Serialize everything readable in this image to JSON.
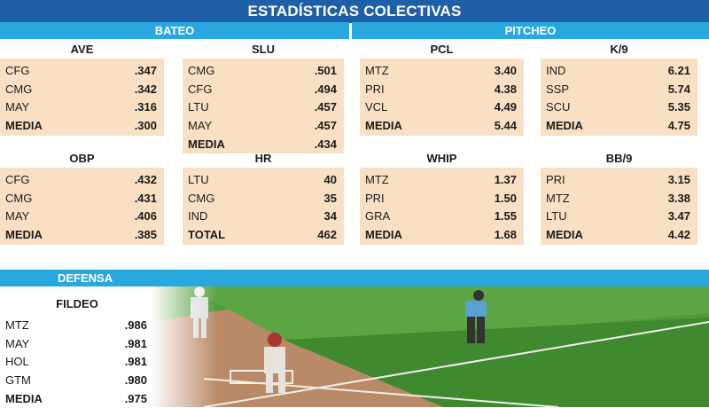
{
  "title": "ESTADÍSTICAS COLECTIVAS",
  "sections": {
    "bateo": "BATEO",
    "pitcheo": "PITCHEO",
    "defensa": "DEFENSA"
  },
  "colors": {
    "title_bar": "#1f5fa8",
    "section_bar": "#29a8e0",
    "panel_bg": "#f9e0c5"
  },
  "panels": {
    "ave": {
      "title": "AVE",
      "rows": [
        [
          "CFG",
          ".347"
        ],
        [
          "CMG",
          ".342"
        ],
        [
          "MAY",
          ".316"
        ],
        [
          "MEDIA",
          ".300"
        ]
      ]
    },
    "slu": {
      "title": "SLU",
      "rows": [
        [
          "CMG",
          ".501"
        ],
        [
          "CFG",
          ".494"
        ],
        [
          "LTU",
          ".457"
        ],
        [
          "MAY",
          ".457"
        ],
        [
          "MEDIA",
          ".434"
        ]
      ]
    },
    "pcl": {
      "title": "PCL",
      "rows": [
        [
          "MTZ",
          "3.40"
        ],
        [
          "PRI",
          "4.38"
        ],
        [
          "VCL",
          "4.49"
        ],
        [
          "MEDIA",
          "5.44"
        ]
      ]
    },
    "k9": {
      "title": "K/9",
      "rows": [
        [
          "IND",
          "6.21"
        ],
        [
          "SSP",
          "5.74"
        ],
        [
          "SCU",
          "5.35"
        ],
        [
          "MEDIA",
          "4.75"
        ]
      ]
    },
    "obp": {
      "title": "OBP",
      "rows": [
        [
          "CFG",
          ".432"
        ],
        [
          "CMG",
          ".431"
        ],
        [
          "MAY",
          ".406"
        ],
        [
          "MEDIA",
          ".385"
        ]
      ]
    },
    "hr": {
      "title": "HR",
      "rows": [
        [
          "LTU",
          "40"
        ],
        [
          "CMG",
          "35"
        ],
        [
          "IND",
          "34"
        ],
        [
          "TOTAL",
          "462"
        ]
      ]
    },
    "whip": {
      "title": "WHIP",
      "rows": [
        [
          "MTZ",
          "1.37"
        ],
        [
          "PRI",
          "1.50"
        ],
        [
          "GRA",
          "1.55"
        ],
        [
          "MEDIA",
          "1.68"
        ]
      ]
    },
    "bb9": {
      "title": "BB/9",
      "rows": [
        [
          "PRI",
          "3.15"
        ],
        [
          "MTZ",
          "3.38"
        ],
        [
          "LTU",
          "3.47"
        ],
        [
          "MEDIA",
          "4.42"
        ]
      ]
    },
    "fildeo": {
      "title": "FILDEO",
      "rows": [
        [
          "MTZ",
          ".986"
        ],
        [
          "MAY",
          ".981"
        ],
        [
          "HOL",
          ".981"
        ],
        [
          "GTM",
          ".980"
        ],
        [
          "MEDIA",
          ".975"
        ]
      ]
    }
  }
}
